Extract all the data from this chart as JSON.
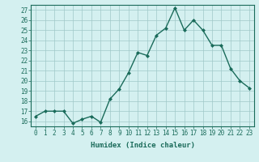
{
  "x": [
    0,
    1,
    2,
    3,
    4,
    5,
    6,
    7,
    8,
    9,
    10,
    11,
    12,
    13,
    14,
    15,
    16,
    17,
    18,
    19,
    20,
    21,
    22,
    23
  ],
  "y": [
    16.5,
    17.0,
    17.0,
    17.0,
    15.8,
    16.2,
    16.5,
    15.9,
    18.2,
    19.2,
    20.8,
    22.8,
    22.5,
    24.5,
    25.2,
    27.2,
    25.0,
    26.0,
    25.0,
    23.5,
    23.5,
    21.2,
    20.0,
    19.3
  ],
  "line_color": "#1a6b5a",
  "marker": "D",
  "marker_size": 2.0,
  "bg_color": "#d4f0f0",
  "grid_color": "#a0c8c8",
  "xlabel": "Humidex (Indice chaleur)",
  "xlim": [
    -0.5,
    23.5
  ],
  "ylim": [
    15.5,
    27.5
  ],
  "yticks": [
    16,
    17,
    18,
    19,
    20,
    21,
    22,
    23,
    24,
    25,
    26,
    27
  ],
  "xticks": [
    0,
    1,
    2,
    3,
    4,
    5,
    6,
    7,
    8,
    9,
    10,
    11,
    12,
    13,
    14,
    15,
    16,
    17,
    18,
    19,
    20,
    21,
    22,
    23
  ],
  "tick_fontsize": 5.5,
  "xlabel_fontsize": 6.5,
  "linewidth": 1.0
}
